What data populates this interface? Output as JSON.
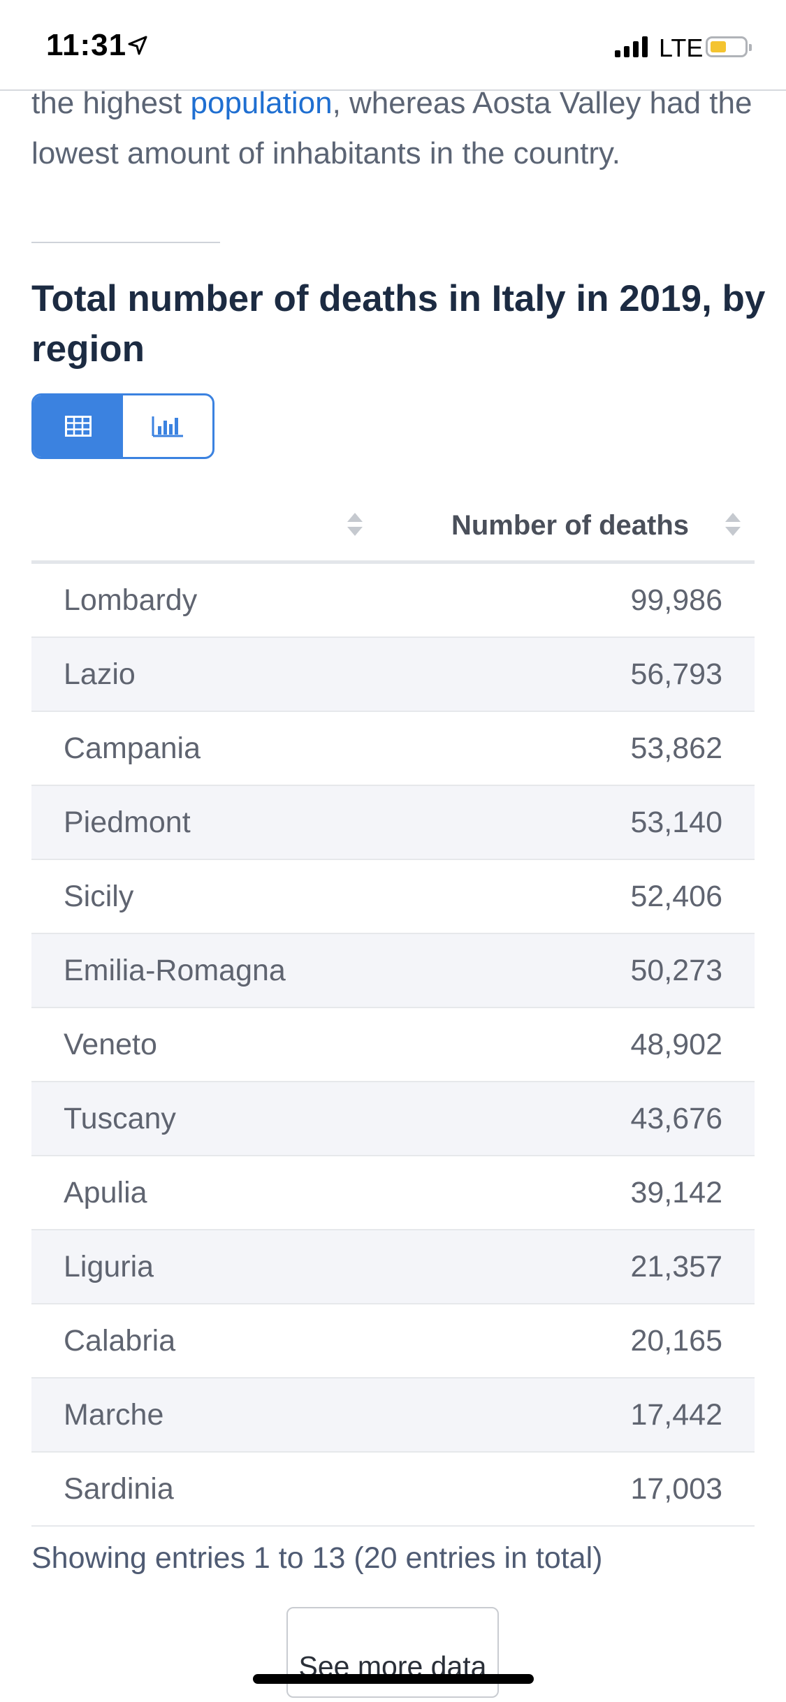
{
  "status_bar": {
    "time": "11:31",
    "network": "LTE",
    "battery_level": 0.35,
    "battery_color": "#f4c430"
  },
  "intro": {
    "prefix": "the highest ",
    "link": "population",
    "suffix": ", whereas Aosta Valley had the lowest amount of inhabitants in the country."
  },
  "title": "Total number of deaths in Italy in 2019, by region",
  "view_toggle": {
    "active": "table",
    "icons": [
      "table-icon",
      "bar-chart-icon"
    ]
  },
  "table": {
    "columns": [
      "",
      "Number of deaths"
    ],
    "rows": [
      {
        "region": "Lombardy",
        "deaths": "99,986"
      },
      {
        "region": "Lazio",
        "deaths": "56,793"
      },
      {
        "region": "Campania",
        "deaths": "53,862"
      },
      {
        "region": "Piedmont",
        "deaths": "53,140"
      },
      {
        "region": "Sicily",
        "deaths": "52,406"
      },
      {
        "region": "Emilia-Romagna",
        "deaths": "50,273"
      },
      {
        "region": "Veneto",
        "deaths": "48,902"
      },
      {
        "region": "Tuscany",
        "deaths": "43,676"
      },
      {
        "region": "Apulia",
        "deaths": "39,142"
      },
      {
        "region": "Liguria",
        "deaths": "21,357"
      },
      {
        "region": "Calabria",
        "deaths": "20,165"
      },
      {
        "region": "Marche",
        "deaths": "17,442"
      },
      {
        "region": "Sardinia",
        "deaths": "17,003"
      }
    ]
  },
  "entries_text": "Showing entries 1 to 13 (20 entries in total)",
  "more_button": "See more data",
  "colors": {
    "accent": "#3b82e0",
    "link": "#1f6fd1",
    "title": "#1c2b42"
  }
}
